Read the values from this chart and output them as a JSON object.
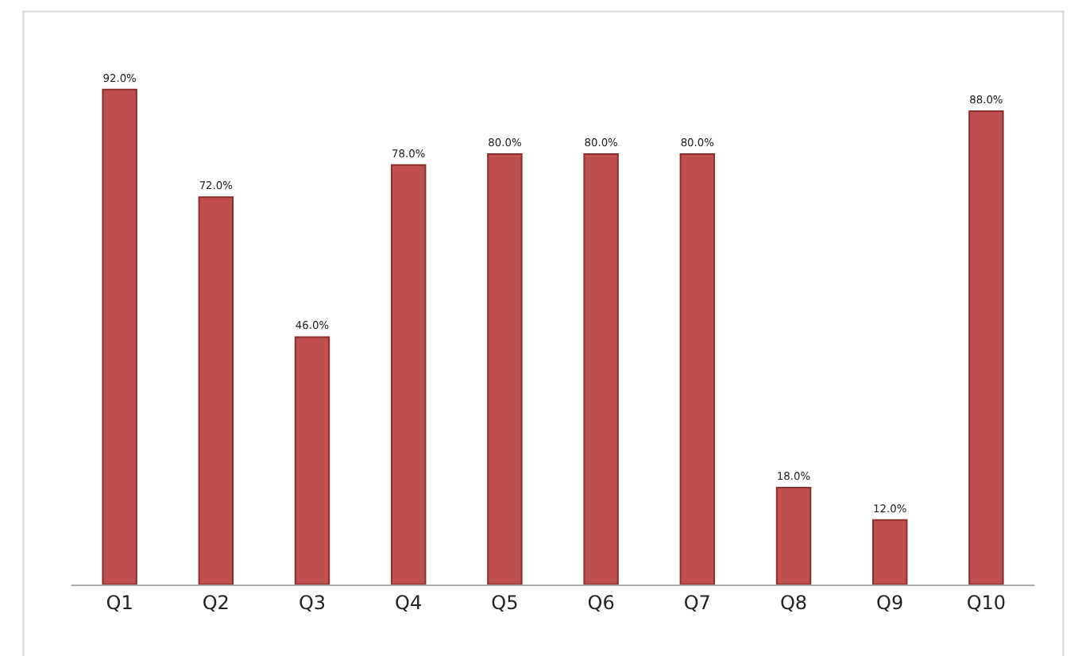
{
  "chart_data": {
    "type": "bar",
    "categories": [
      "Q1",
      "Q2",
      "Q3",
      "Q4",
      "Q5",
      "Q6",
      "Q7",
      "Q8",
      "Q9",
      "Q10"
    ],
    "values": [
      92,
      72,
      46,
      78,
      80,
      80,
      80,
      18,
      12,
      88
    ],
    "value_labels": [
      "92.0%",
      "72.0%",
      "46.0%",
      "78.0%",
      "80.0%",
      "80.0%",
      "80.0%",
      "18.0%",
      "12.0%",
      "88.0%"
    ],
    "color": "#c0504d"
  }
}
